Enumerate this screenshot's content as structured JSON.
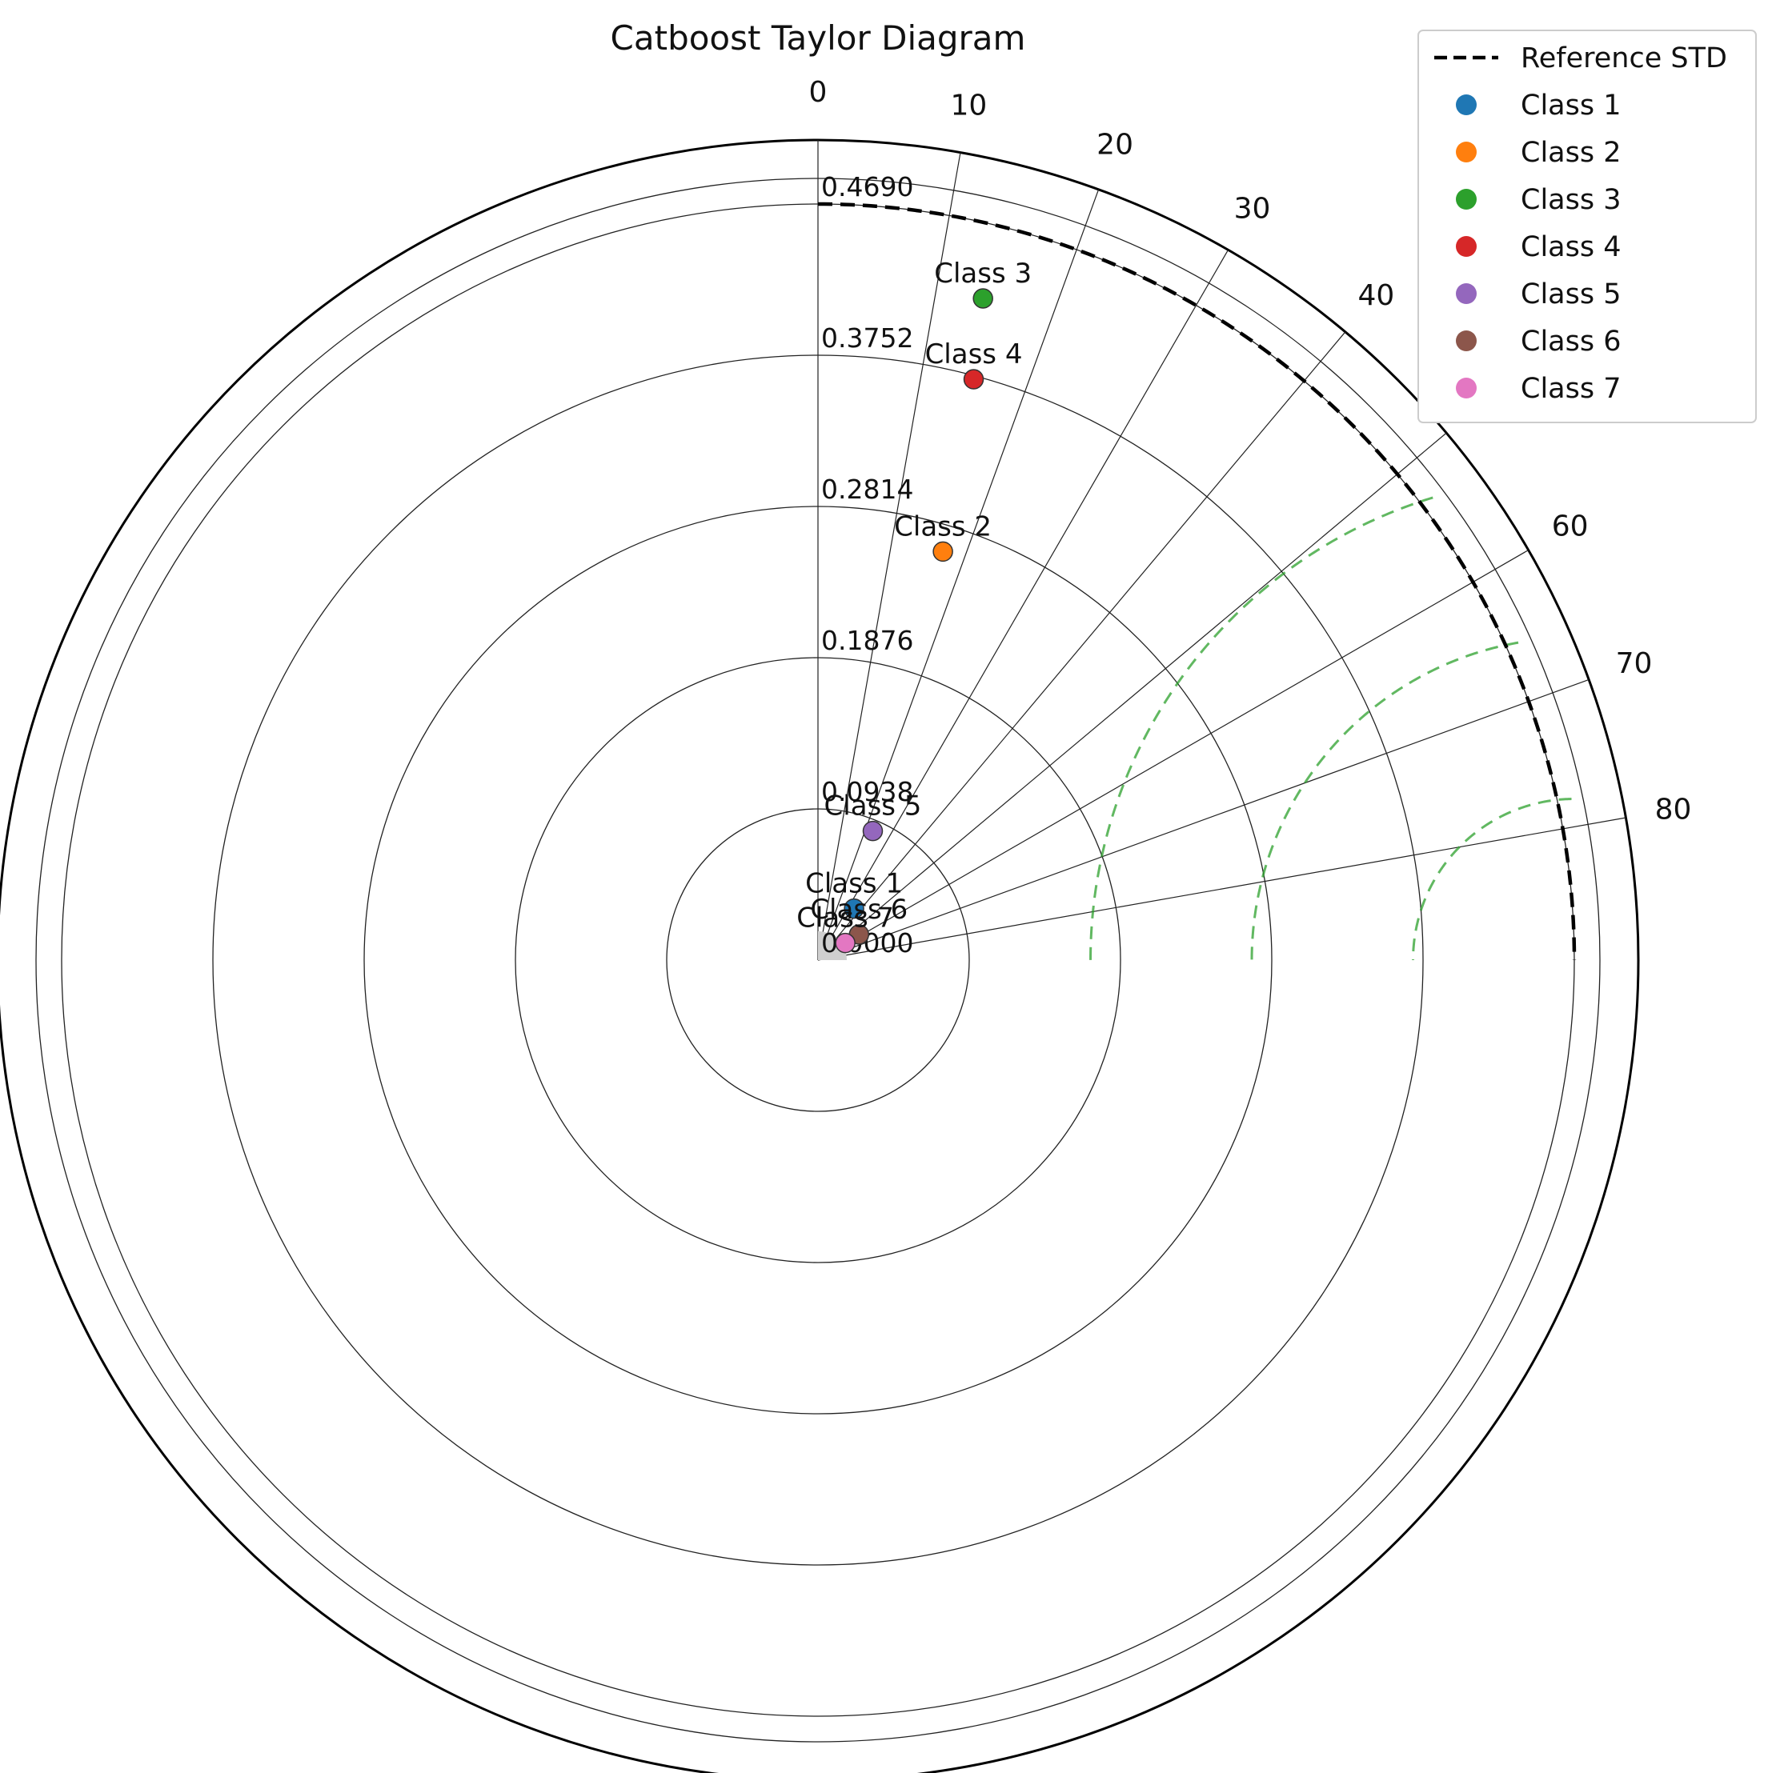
{
  "chart_data": {
    "type": "scatter",
    "projection": "polar (Taylor diagram)",
    "title": "Catboost Taylor Diagram",
    "theta_axis": {
      "ticks": [
        "0",
        "10",
        "20",
        "30",
        "40",
        "50",
        "60",
        "70",
        "80"
      ],
      "range": [
        0,
        90
      ],
      "zero_direction": "top",
      "direction": "clockwise"
    },
    "radial_axis": {
      "ticks": [
        "0.0000",
        "0.0938",
        "0.1876",
        "0.2814",
        "0.3752",
        "0.4690"
      ],
      "range": [
        0,
        0.469
      ]
    },
    "grid": true,
    "reference_std": 0.469,
    "rms_contour_levels": [
      0.1,
      0.2,
      0.3
    ],
    "colors": {
      "reference": "#000000",
      "rms_contours": "#2ca02c",
      "grid": "#222222"
    },
    "series": [
      {
        "name": "Class 1",
        "label": "Class 1",
        "theta": 35,
        "r": 0.039,
        "color": "#1f77b4"
      },
      {
        "name": "Class 2",
        "label": "Class 2",
        "theta": 17,
        "r": 0.265,
        "color": "#ff7f0e"
      },
      {
        "name": "Class 3",
        "label": "Class 3",
        "theta": 14,
        "r": 0.423,
        "color": "#2ca02c"
      },
      {
        "name": "Class 4",
        "label": "Class 4",
        "theta": 15,
        "r": 0.373,
        "color": "#d62728"
      },
      {
        "name": "Class 5",
        "label": "Class 5",
        "theta": 23,
        "r": 0.087,
        "color": "#9467bd"
      },
      {
        "name": "Class 6",
        "label": "Class 6",
        "theta": 58,
        "r": 0.03,
        "color": "#8c564b"
      },
      {
        "name": "Class 7",
        "label": "Class 7",
        "theta": 58,
        "r": 0.02,
        "color": "#e377c2"
      }
    ],
    "legend": {
      "placement": "top-right",
      "entries": [
        {
          "label": "Reference STD",
          "kind": "dashed-line",
          "color": "#000000"
        },
        {
          "label": "Class 1",
          "kind": "marker",
          "color": "#1f77b4"
        },
        {
          "label": "Class 2",
          "kind": "marker",
          "color": "#ff7f0e"
        },
        {
          "label": "Class 3",
          "kind": "marker",
          "color": "#2ca02c"
        },
        {
          "label": "Class 4",
          "kind": "marker",
          "color": "#d62728"
        },
        {
          "label": "Class 5",
          "kind": "marker",
          "color": "#9467bd"
        },
        {
          "label": "Class 6",
          "kind": "marker",
          "color": "#8c564b"
        },
        {
          "label": "Class 7",
          "kind": "marker",
          "color": "#e377c2"
        }
      ]
    }
  }
}
